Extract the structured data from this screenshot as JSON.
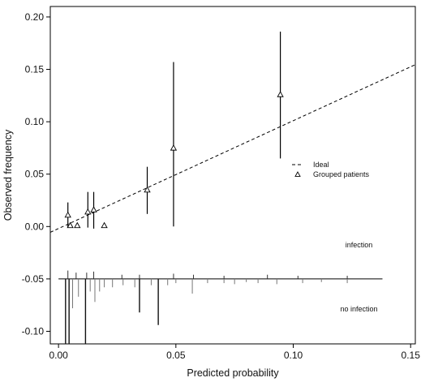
{
  "chart_data": {
    "type": "scatter",
    "title": "",
    "xlabel": "Predicted probability",
    "ylabel": "Observed frequency",
    "xlim": [
      -0.0035,
      0.152
    ],
    "ylim": [
      -0.112,
      0.21
    ],
    "x_ticks": [
      {
        "value": 0.0,
        "label": "0.00"
      },
      {
        "value": 0.05,
        "label": "0.05"
      },
      {
        "value": 0.1,
        "label": "0.10"
      },
      {
        "value": 0.15,
        "label": "0.15"
      }
    ],
    "y_ticks": [
      {
        "value": -0.1,
        "label": "-0.10"
      },
      {
        "value": -0.05,
        "label": "-0.05"
      },
      {
        "value": 0.0,
        "label": "0.00"
      },
      {
        "value": 0.05,
        "label": "0.05"
      },
      {
        "value": 0.1,
        "label": "0.10"
      },
      {
        "value": 0.15,
        "label": "0.15"
      },
      {
        "value": 0.2,
        "label": "0.20"
      }
    ],
    "grid": false,
    "legend_position": "right",
    "ideal_line": {
      "name": "Ideal",
      "style": "dashed",
      "points": [
        [
          -0.0035,
          -0.0055
        ],
        [
          0.152,
          0.1545
        ]
      ]
    },
    "series": [
      {
        "name": "Grouped patients",
        "marker": "triangle",
        "points": [
          {
            "x": 0.004,
            "y": 0.011,
            "lo": -0.001,
            "hi": 0.023
          },
          {
            "x": 0.005,
            "y": 0.001,
            "lo": 0.001,
            "hi": 0.001
          },
          {
            "x": 0.008,
            "y": 0.001,
            "lo": 0.001,
            "hi": 0.001
          },
          {
            "x": 0.0125,
            "y": 0.014,
            "lo": -0.001,
            "hi": 0.033
          },
          {
            "x": 0.015,
            "y": 0.016,
            "lo": -0.002,
            "hi": 0.033
          },
          {
            "x": 0.0195,
            "y": 0.001,
            "lo": 0.001,
            "hi": 0.001
          },
          {
            "x": 0.0378,
            "y": 0.035,
            "lo": 0.012,
            "hi": 0.057
          },
          {
            "x": 0.049,
            "y": 0.075,
            "lo": 0.0,
            "hi": 0.157
          },
          {
            "x": 0.0945,
            "y": 0.126,
            "lo": 0.065,
            "hi": 0.186
          }
        ]
      }
    ],
    "spike_baseline": -0.05,
    "spike_baseline_extent": [
      0.0,
      0.138
    ],
    "spikes_up": [
      {
        "x": 0.004,
        "y": -0.042
      },
      {
        "x": 0.0075,
        "y": -0.044
      },
      {
        "x": 0.012,
        "y": -0.044
      },
      {
        "x": 0.015,
        "y": -0.043
      },
      {
        "x": 0.027,
        "y": -0.046
      },
      {
        "x": 0.0345,
        "y": -0.046
      },
      {
        "x": 0.049,
        "y": -0.045
      },
      {
        "x": 0.0575,
        "y": -0.046
      },
      {
        "x": 0.0705,
        "y": -0.047
      },
      {
        "x": 0.089,
        "y": -0.046
      },
      {
        "x": 0.102,
        "y": -0.047
      },
      {
        "x": 0.123,
        "y": -0.047
      }
    ],
    "spikes_down": [
      {
        "x": 0.003,
        "y": -0.112
      },
      {
        "x": 0.0045,
        "y": -0.112
      },
      {
        "x": 0.006,
        "y": -0.078
      },
      {
        "x": 0.0085,
        "y": -0.067
      },
      {
        "x": 0.0115,
        "y": -0.112
      },
      {
        "x": 0.0135,
        "y": -0.062
      },
      {
        "x": 0.0155,
        "y": -0.072
      },
      {
        "x": 0.0175,
        "y": -0.062
      },
      {
        "x": 0.0195,
        "y": -0.058
      },
      {
        "x": 0.023,
        "y": -0.058
      },
      {
        "x": 0.0275,
        "y": -0.056
      },
      {
        "x": 0.0325,
        "y": -0.058
      },
      {
        "x": 0.0345,
        "y": -0.082
      },
      {
        "x": 0.0395,
        "y": -0.056
      },
      {
        "x": 0.0425,
        "y": -0.094
      },
      {
        "x": 0.0465,
        "y": -0.056
      },
      {
        "x": 0.05,
        "y": -0.054
      },
      {
        "x": 0.057,
        "y": -0.064
      },
      {
        "x": 0.0635,
        "y": -0.054
      },
      {
        "x": 0.0705,
        "y": -0.054
      },
      {
        "x": 0.075,
        "y": -0.055
      },
      {
        "x": 0.08,
        "y": -0.053
      },
      {
        "x": 0.085,
        "y": -0.054
      },
      {
        "x": 0.093,
        "y": -0.055
      },
      {
        "x": 0.104,
        "y": -0.054
      },
      {
        "x": 0.112,
        "y": -0.053
      },
      {
        "x": 0.123,
        "y": -0.054
      }
    ],
    "legend": [
      {
        "label": "Ideal",
        "symbol": "dashed-line"
      },
      {
        "label": "Grouped patients",
        "symbol": "triangle"
      }
    ],
    "annotations": [
      {
        "text": "infection",
        "x": 0.128,
        "y": -0.02
      },
      {
        "text": "no infection",
        "x": 0.128,
        "y": -0.081
      }
    ]
  }
}
